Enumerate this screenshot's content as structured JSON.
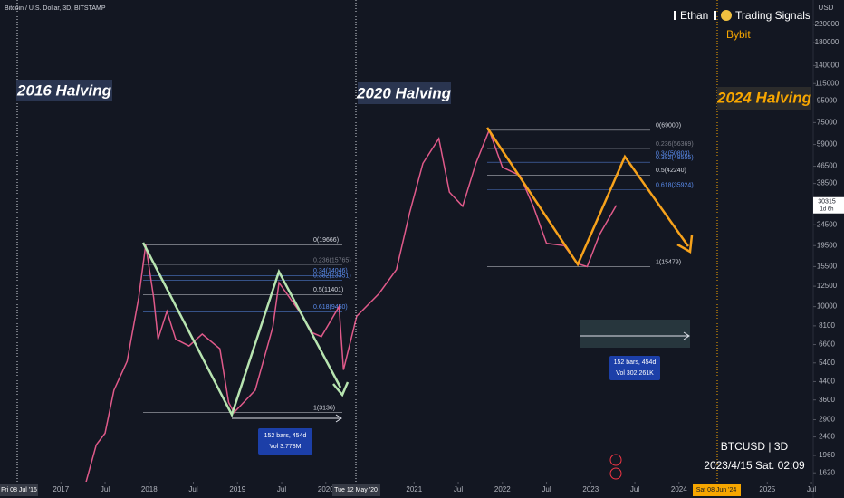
{
  "chart_data": {
    "type": "line",
    "title": "Bitcoin / U.S. Dollar, 3D, BITSTAMP",
    "y_axis_label": "USD",
    "log_scale": true,
    "x": [
      2017.25,
      2017.4,
      2017.5,
      2017.6,
      2017.75,
      2017.88,
      2017.96,
      2018.05,
      2018.1,
      2018.2,
      2018.3,
      2018.45,
      2018.6,
      2018.8,
      2018.9,
      2018.96,
      2019.2,
      2019.4,
      2019.47,
      2019.7,
      2019.85,
      2019.95,
      2020.15,
      2020.2,
      2020.35,
      2020.6,
      2020.8,
      2020.95,
      2021.1,
      2021.28,
      2021.4,
      2021.55,
      2021.7,
      2021.85,
      2022.0,
      2022.2,
      2022.35,
      2022.5,
      2022.7,
      2022.85,
      2022.96,
      2023.1,
      2023.29
    ],
    "series": [
      {
        "name": "BTCUSD",
        "color": "#e05a8a",
        "values": [
          1300,
          2200,
          2500,
          4000,
          5500,
          11000,
          19666,
          11000,
          7000,
          9500,
          7000,
          6500,
          7400,
          6300,
          3500,
          3136,
          4000,
          8000,
          13000,
          9500,
          7500,
          7200,
          10000,
          5000,
          9000,
          11500,
          15000,
          28000,
          48000,
          63000,
          35000,
          30000,
          48000,
          69000,
          46000,
          42000,
          30000,
          20000,
          19500,
          16000,
          15479,
          22000,
          30315
        ]
      }
    ],
    "xlim": [
      2016.31,
      2025.52
    ],
    "ylim": [
      1230,
      287000
    ],
    "xticks": [
      {
        "value": 2017,
        "label": "2017"
      },
      {
        "value": 2017.5,
        "label": "Jul"
      },
      {
        "value": 2018,
        "label": "2018"
      },
      {
        "value": 2018.5,
        "label": "Jul"
      },
      {
        "value": 2019,
        "label": "2019"
      },
      {
        "value": 2019.5,
        "label": "Jul"
      },
      {
        "value": 2020,
        "label": "2020"
      },
      {
        "value": 2021,
        "label": "2021"
      },
      {
        "value": 2021.5,
        "label": "Jul"
      },
      {
        "value": 2022,
        "label": "2022"
      },
      {
        "value": 2022.5,
        "label": "Jul"
      },
      {
        "value": 2023,
        "label": "2023"
      },
      {
        "value": 2023.5,
        "label": "Jul"
      },
      {
        "value": 2024,
        "label": "2024"
      },
      {
        "value": 2025,
        "label": "2025"
      },
      {
        "value": 2025.5,
        "label": "Jul"
      }
    ],
    "yticks": [
      220000,
      180000,
      140000,
      115000,
      95000,
      75000,
      59000,
      46500,
      38500,
      24500,
      19500,
      15500,
      12500,
      10000,
      8100,
      6600,
      5400,
      4400,
      3600,
      2900,
      2400,
      1960,
      1620
    ],
    "last_price": 30315,
    "last_price_countdown": "1d 6h",
    "fib_2016": [
      {
        "label": "0(19666)",
        "value": 19666,
        "color": "#d1d4dc"
      },
      {
        "label": "0.236(15765)",
        "value": 15765,
        "color": "#787b86"
      },
      {
        "label": "0.34(14046)",
        "value": 14046,
        "color": "#5b8def"
      },
      {
        "label": "0.382(13351)",
        "value": 13351,
        "color": "#5b8def"
      },
      {
        "label": "0.5(11401)",
        "value": 11401,
        "color": "#d1d4dc"
      },
      {
        "label": "0.618(9450)",
        "value": 9450,
        "color": "#5b8def"
      },
      {
        "label": "1(3136)",
        "value": 3136,
        "color": "#d1d4dc"
      }
    ],
    "fib_2020": [
      {
        "label": "0(69000)",
        "value": 69000,
        "color": "#d1d4dc"
      },
      {
        "label": "0.236(56369)",
        "value": 56369,
        "color": "#787b86"
      },
      {
        "label": "0.34(50803)",
        "value": 50803,
        "color": "#5b8def"
      },
      {
        "label": "0.382(48555)",
        "value": 48555,
        "color": "#5b8def"
      },
      {
        "label": "0.5(42240)",
        "value": 42240,
        "color": "#d1d4dc"
      },
      {
        "label": "0.618(35924)",
        "value": 35924,
        "color": "#5b8def"
      },
      {
        "label": "1(15479)",
        "value": 15479,
        "color": "#d1d4dc"
      }
    ],
    "annotations": {
      "halving_2016": "2016 Halving",
      "halving_2020": "2020 Halving",
      "halving_2024": "2024 Halving",
      "measure_1_bars": "152 bars, 454d",
      "measure_1_vol": "Vol 3.778M",
      "measure_2_bars": "152 bars, 454d",
      "measure_2_vol": "Vol 302.261K",
      "date_2016": "Fri 08 Jul '16",
      "date_2020": "Tue 12 May '20",
      "date_2024": "Sat 08 Jun '24",
      "author": "Ethan",
      "brand": "Trading Signals",
      "exchange": "Bybit",
      "symbol": "BTCUSD | 3D",
      "timestamp": "2023/4/15 Sat. 02:09"
    }
  }
}
